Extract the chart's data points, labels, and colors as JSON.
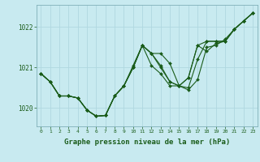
{
  "background_color": "#c8eaf0",
  "grid_color": "#b0d8e0",
  "line_color": "#1a5c1a",
  "marker_color": "#1a5c1a",
  "xlabel": "Graphe pression niveau de la mer (hPa)",
  "xlabel_fontsize": 6.5,
  "yticks": [
    1020,
    1021,
    1022
  ],
  "xticks": [
    0,
    1,
    2,
    3,
    4,
    5,
    6,
    7,
    8,
    9,
    10,
    11,
    12,
    13,
    14,
    15,
    16,
    17,
    18,
    19,
    20,
    21,
    22,
    23
  ],
  "xlim": [
    -0.5,
    23.5
  ],
  "ylim": [
    1019.55,
    1022.55
  ],
  "series": [
    [
      1020.85,
      1020.65,
      1020.3,
      1020.3,
      1020.25,
      1019.95,
      1019.8,
      1019.82,
      1020.3,
      1020.55,
      1021.0,
      1021.55,
      1021.05,
      1020.85,
      1020.55,
      1020.55,
      1020.45,
      1020.7,
      1021.5,
      1021.55,
      1021.7,
      1021.95,
      1022.15,
      1022.35
    ],
    [
      1020.85,
      1020.65,
      1020.3,
      1020.3,
      1020.25,
      1019.95,
      1019.8,
      1019.82,
      1020.3,
      1020.55,
      1021.0,
      1021.55,
      1021.35,
      1021.35,
      1021.1,
      1020.55,
      1020.75,
      1021.55,
      1021.4,
      1021.6,
      1021.65,
      1021.95,
      1022.15,
      1022.35
    ],
    [
      1020.85,
      1020.65,
      1020.3,
      1020.3,
      1020.25,
      1019.95,
      1019.8,
      1019.82,
      1020.3,
      1020.55,
      1021.0,
      1021.55,
      1021.35,
      1021.05,
      1020.65,
      1020.55,
      1020.5,
      1021.2,
      1021.65,
      1021.65,
      1021.65,
      1021.95,
      1022.15,
      1022.35
    ],
    [
      1020.85,
      1020.65,
      1020.3,
      1020.3,
      1020.25,
      1019.95,
      1019.8,
      1019.82,
      1020.3,
      1020.55,
      1021.05,
      1021.55,
      1021.35,
      1021.0,
      1020.65,
      1020.55,
      1020.75,
      1021.55,
      1021.65,
      1021.65,
      1021.65,
      1021.95,
      1022.15,
      1022.35
    ]
  ],
  "straight_lines": [
    [
      [
        0,
        23
      ],
      [
        1020.85,
        1022.35
      ]
    ],
    [
      [
        0,
        23
      ],
      [
        1020.85,
        1022.35
      ]
    ],
    [
      [
        0,
        10
      ],
      [
        1020.85,
        1021.0
      ]
    ],
    [
      [
        0,
        10
      ],
      [
        1020.85,
        1021.05
      ]
    ]
  ]
}
